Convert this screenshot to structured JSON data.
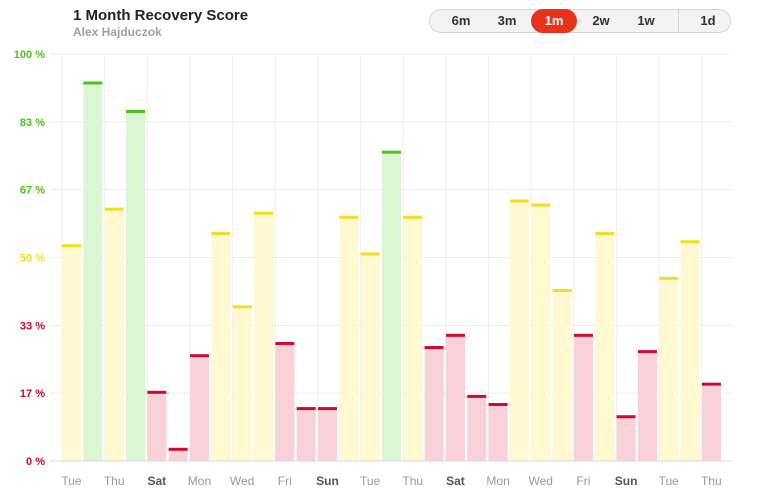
{
  "header": {
    "title": "1 Month Recovery Score",
    "subtitle": "Alex Hajduczok"
  },
  "range_selector": {
    "options": [
      "6m",
      "3m",
      "1m",
      "2w",
      "1w",
      "1d"
    ],
    "selected": "1m"
  },
  "colors": {
    "green_line": "#4cc21a",
    "green_fill": "#dcf5d3",
    "yellow_line": "#f5dc1e",
    "yellow_fill": "#fff9d2",
    "red_line": "#cf0a2c",
    "red_fill": "#f9d1d8",
    "accent": "#e8331c"
  },
  "chart_data": {
    "type": "bar",
    "title": "1 Month Recovery Score",
    "xlabel": "",
    "ylabel": "",
    "ylim": [
      0,
      100
    ],
    "y_ticks": [
      {
        "value": 0,
        "label": "0 %",
        "level": "red"
      },
      {
        "value": 16.67,
        "label": "17 %",
        "level": "red"
      },
      {
        "value": 33.33,
        "label": "33 %",
        "level": "red"
      },
      {
        "value": 50,
        "label": "50 %",
        "level": "yellow"
      },
      {
        "value": 66.67,
        "label": "67 %",
        "level": "green"
      },
      {
        "value": 83.33,
        "label": "83 %",
        "level": "green"
      },
      {
        "value": 100,
        "label": "100 %",
        "level": "green"
      }
    ],
    "x_tick_labels": [
      {
        "index": 0,
        "label": "Tue",
        "bold": false
      },
      {
        "index": 2,
        "label": "Thu",
        "bold": false
      },
      {
        "index": 4,
        "label": "Sat",
        "bold": true
      },
      {
        "index": 6,
        "label": "Mon",
        "bold": false
      },
      {
        "index": 8,
        "label": "Wed",
        "bold": false
      },
      {
        "index": 10,
        "label": "Fri",
        "bold": false
      },
      {
        "index": 12,
        "label": "Sun",
        "bold": true
      },
      {
        "index": 14,
        "label": "Tue",
        "bold": false
      },
      {
        "index": 16,
        "label": "Thu",
        "bold": false
      },
      {
        "index": 18,
        "label": "Sat",
        "bold": true
      },
      {
        "index": 20,
        "label": "Mon",
        "bold": false
      },
      {
        "index": 22,
        "label": "Wed",
        "bold": false
      },
      {
        "index": 24,
        "label": "Fri",
        "bold": false
      },
      {
        "index": 26,
        "label": "Sun",
        "bold": true
      },
      {
        "index": 28,
        "label": "Tue",
        "bold": false
      },
      {
        "index": 30,
        "label": "Thu",
        "bold": false
      }
    ],
    "values": [
      53,
      93,
      62,
      86,
      17,
      3,
      26,
      56,
      38,
      61,
      29,
      13,
      13,
      60,
      51,
      76,
      60,
      28,
      31,
      16,
      14,
      64,
      63,
      42,
      31,
      56,
      11,
      27,
      45,
      54,
      19
    ]
  }
}
